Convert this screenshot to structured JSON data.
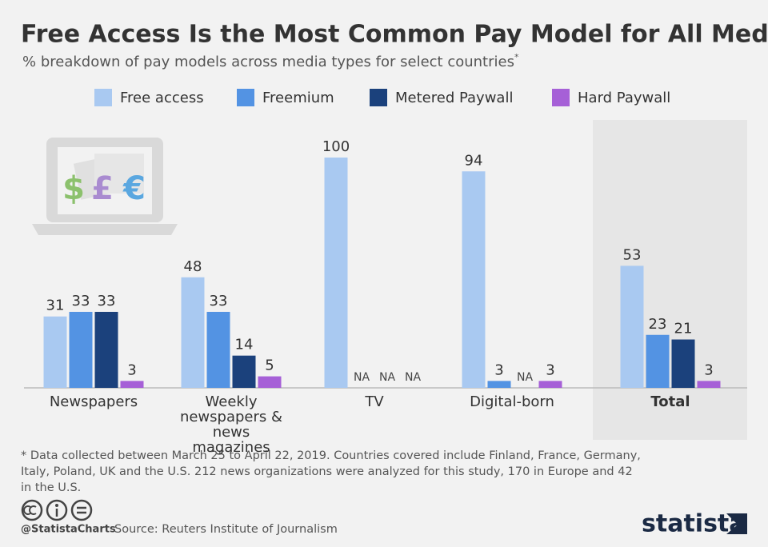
{
  "chart_data": {
    "type": "bar",
    "title": "Free Access Is the Most Common Pay Model for All Media",
    "subtitle": "% breakdown of pay models across media types for select countries",
    "subtitle_marker": "*",
    "categories": [
      "Newspapers",
      "Weekly newspapers & news magazines",
      "TV",
      "Digital-born",
      "Total"
    ],
    "highlight_category": "Total",
    "series": [
      {
        "name": "Free access",
        "color": "#a9c9f1",
        "values": [
          31,
          48,
          100,
          94,
          53
        ]
      },
      {
        "name": "Freemium",
        "color": "#5393e3",
        "values": [
          33,
          33,
          null,
          3,
          23
        ],
        "value_labels": [
          "33",
          "33",
          "NA",
          "3",
          "23"
        ]
      },
      {
        "name": "Metered Paywall",
        "color": "#1b417c",
        "values": [
          33,
          14,
          null,
          null,
          21
        ],
        "value_labels": [
          "33",
          "14",
          "NA",
          "NA",
          "21"
        ]
      },
      {
        "name": "Hard Paywall",
        "color": "#a660d7",
        "values": [
          3,
          5,
          null,
          3,
          3
        ],
        "value_labels": [
          "3",
          "5",
          "NA",
          "3",
          "3"
        ]
      }
    ],
    "ylim": [
      0,
      100
    ],
    "icon_symbols": [
      "$",
      "£",
      "€"
    ],
    "footnote": "* Data collected between March 25 to April 22, 2019. Countries covered include Finland, France, Germany, Italy, Poland, UK and the U.S. 212 news organizations were analyzed for this study, 170 in Europe and 42 in the U.S.",
    "credit": "@StatistaCharts",
    "source": "Source: Reuters Institute of Journalism",
    "brand": "statista"
  }
}
